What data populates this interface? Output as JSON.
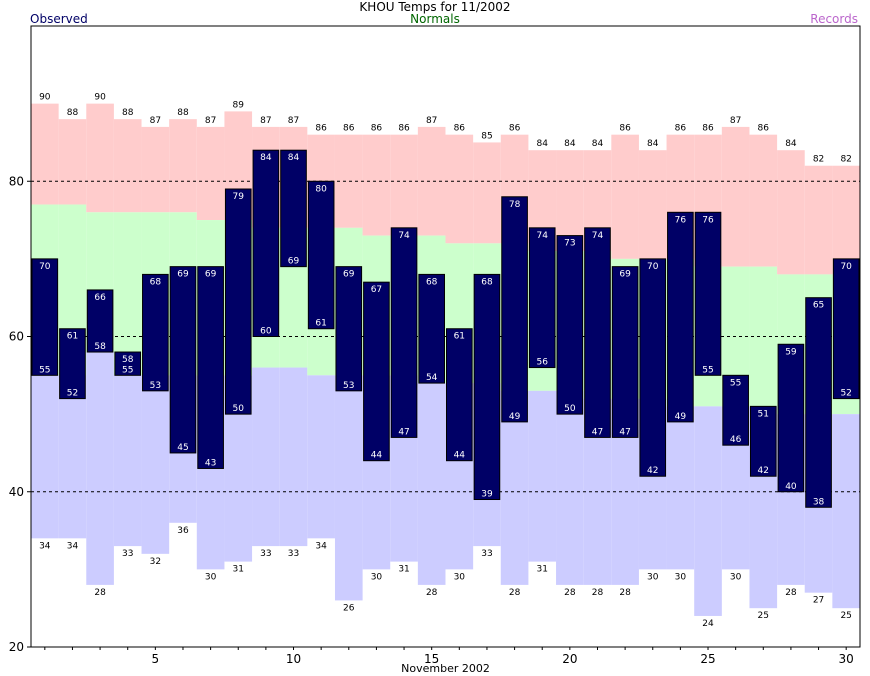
{
  "chart_data": {
    "type": "bar",
    "title": "KHOU Temps for 11/2002",
    "xlabel": "November 2002",
    "ylabel": "",
    "ylim": [
      20,
      100
    ],
    "xlim": [
      0.5,
      30.5
    ],
    "x_ticks": [
      5,
      10,
      15,
      20,
      25,
      30
    ],
    "y_ticks": [
      20,
      40,
      60,
      80
    ],
    "gridlines_dashed_at": [
      40,
      60,
      80
    ],
    "legend": {
      "observed": "Observed",
      "normals": "Normals",
      "records": "Records",
      "placement": "top"
    },
    "colors": {
      "observed": "#000066",
      "normal_band": "#ccffcc",
      "record_high_band": "#ffcccc",
      "record_low_band": "#ccccff",
      "normals_text": "#006600",
      "records_text": "#bb66cc",
      "observed_text": "#000066",
      "grid": "#000000"
    },
    "days": [
      1,
      2,
      3,
      4,
      5,
      6,
      7,
      8,
      9,
      10,
      11,
      12,
      13,
      14,
      15,
      16,
      17,
      18,
      19,
      20,
      21,
      22,
      23,
      24,
      25,
      26,
      27,
      28,
      29,
      30
    ],
    "series": [
      {
        "name": "Record High",
        "values": [
          90,
          88,
          90,
          88,
          87,
          88,
          87,
          89,
          87,
          87,
          86,
          86,
          86,
          86,
          87,
          86,
          85,
          86,
          84,
          84,
          84,
          86,
          84,
          86,
          86,
          87,
          86,
          84,
          82,
          82
        ]
      },
      {
        "name": "Normal High",
        "values": [
          77,
          77,
          76,
          76,
          76,
          76,
          75,
          75,
          74,
          74,
          74,
          74,
          73,
          73,
          73,
          72,
          72,
          72,
          71,
          71,
          71,
          70,
          70,
          70,
          69,
          69,
          69,
          68,
          68,
          68
        ]
      },
      {
        "name": "Normal Low",
        "values": [
          55,
          55,
          58,
          55,
          55,
          55,
          55,
          55,
          56,
          56,
          55,
          55,
          55,
          55,
          54,
          54,
          54,
          53,
          53,
          53,
          52,
          52,
          52,
          51,
          51,
          51,
          51,
          50,
          50,
          50
        ]
      },
      {
        "name": "Record Low",
        "values": [
          34,
          34,
          28,
          33,
          32,
          36,
          30,
          31,
          33,
          33,
          34,
          26,
          30,
          31,
          28,
          30,
          33,
          28,
          31,
          28,
          28,
          28,
          30,
          30,
          24,
          30,
          25,
          28,
          27,
          25
        ]
      },
      {
        "name": "Observed High",
        "values": [
          70,
          61,
          66,
          58,
          68,
          69,
          69,
          79,
          84,
          84,
          80,
          69,
          67,
          74,
          68,
          61,
          68,
          78,
          74,
          73,
          74,
          69,
          70,
          76,
          76,
          55,
          51,
          59,
          65,
          70
        ]
      },
      {
        "name": "Observed Low",
        "values": [
          55,
          52,
          58,
          55,
          53,
          45,
          43,
          50,
          60,
          69,
          61,
          53,
          44,
          47,
          54,
          44,
          39,
          49,
          56,
          50,
          47,
          47,
          42,
          49,
          55,
          46,
          42,
          40,
          38,
          52
        ]
      }
    ]
  }
}
